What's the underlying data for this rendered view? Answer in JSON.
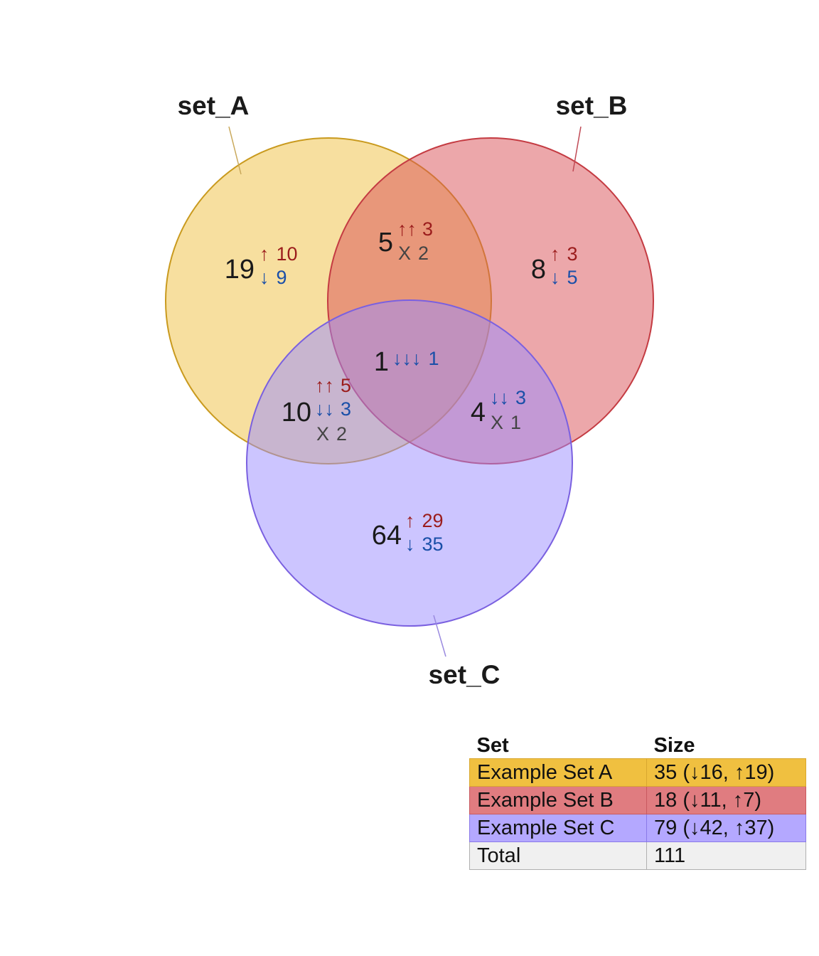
{
  "colors": {
    "set_a": "#f0c040",
    "set_b": "#d94f55",
    "set_c": "#9a8cff",
    "up": "#9b1c1c",
    "down": "#1a4fa8",
    "mixed": "#444444",
    "total_row": "#f0f0f0"
  },
  "sets": [
    {
      "key": "a",
      "label": "set_A",
      "color": "#f0c040",
      "stroke": "#c99a1e"
    },
    {
      "key": "b",
      "label": "set_B",
      "color": "#d94f55",
      "stroke": "#c43b42"
    },
    {
      "key": "c",
      "label": "set_C",
      "color": "#9a8cff",
      "stroke": "#7a60e0"
    }
  ],
  "regions": [
    {
      "key": "a_only",
      "sets": [
        "set_A"
      ],
      "count": "19",
      "lines": [
        {
          "kind": "up",
          "arrows": "↑",
          "n": "10"
        },
        {
          "kind": "down",
          "arrows": "↓",
          "n": "9"
        }
      ]
    },
    {
      "key": "b_only",
      "sets": [
        "set_B"
      ],
      "count": "8",
      "lines": [
        {
          "kind": "up",
          "arrows": "↑",
          "n": "3"
        },
        {
          "kind": "down",
          "arrows": "↓",
          "n": "5"
        }
      ]
    },
    {
      "key": "c_only",
      "sets": [
        "set_C"
      ],
      "count": "64",
      "lines": [
        {
          "kind": "up",
          "arrows": "↑",
          "n": "29"
        },
        {
          "kind": "down",
          "arrows": "↓",
          "n": "35"
        }
      ]
    },
    {
      "key": "ab",
      "sets": [
        "set_A",
        "set_B"
      ],
      "count": "5",
      "lines": [
        {
          "kind": "up",
          "arrows": "↑↑",
          "n": "3"
        },
        {
          "kind": "mixed",
          "arrows": "X",
          "n": "2"
        }
      ]
    },
    {
      "key": "ac",
      "sets": [
        "set_A",
        "set_C"
      ],
      "count": "10",
      "lines": [
        {
          "kind": "up",
          "arrows": "↑↑",
          "n": "5"
        },
        {
          "kind": "down",
          "arrows": "↓↓",
          "n": "3"
        },
        {
          "kind": "mixed",
          "arrows": "X",
          "n": "2"
        }
      ]
    },
    {
      "key": "bc",
      "sets": [
        "set_B",
        "set_C"
      ],
      "count": "4",
      "lines": [
        {
          "kind": "down",
          "arrows": "↓↓",
          "n": "3"
        },
        {
          "kind": "mixed",
          "arrows": "X",
          "n": "1"
        }
      ]
    },
    {
      "key": "abc",
      "sets": [
        "set_A",
        "set_B",
        "set_C"
      ],
      "count": "1",
      "lines": [
        {
          "kind": "down",
          "arrows": "↓↓↓",
          "n": "1"
        }
      ]
    }
  ],
  "table": {
    "headers": [
      "Set",
      "Size"
    ],
    "rows": [
      {
        "set": "Example Set A",
        "size": "35 (↓16, ↑19)",
        "color": "#f0c040",
        "border": "#d9a830"
      },
      {
        "set": "Example Set B",
        "size": "18 (↓11, ↑7)",
        "color": "#e07c80",
        "border": "#c95a60"
      },
      {
        "set": "Example Set C",
        "size": "79 (↓42, ↑37)",
        "color": "#b4a8ff",
        "border": "#8a7ae8"
      },
      {
        "set": "Total",
        "size": "111",
        "color": "#f0f0f0",
        "border": "#b0b0b0"
      }
    ]
  }
}
